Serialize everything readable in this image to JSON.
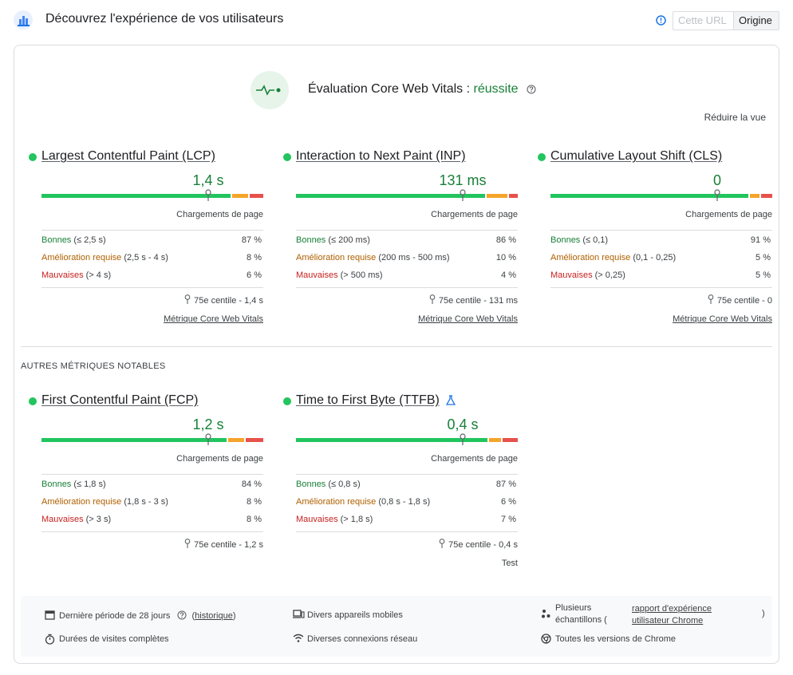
{
  "header": {
    "title": "Découvrez l'expérience de vos utilisateurs",
    "toggle": {
      "url_label": "Cette URL",
      "origin_label": "Origine",
      "selected": "Origine"
    }
  },
  "assessment": {
    "title_prefix": "Évaluation Core Web Vitals : ",
    "result": "réussite",
    "reduce_label": "Réduire la vue"
  },
  "colors": {
    "good": "#22c55e",
    "good_text": "#188038",
    "needs_improvement": "#f4a52a",
    "poor": "#e8514b"
  },
  "core_metrics": [
    {
      "name": "Largest Contentful Paint (LCP)",
      "value": "1,4 s",
      "distribution": {
        "good": 0.87,
        "needs_improvement": 0.08,
        "poor": 0.06
      },
      "marker_fraction": 0.75,
      "subtitle": "Chargements de page",
      "rows": [
        {
          "label": "Bonnes",
          "range": "(≤ 2,5 s)",
          "pct": "87 %"
        },
        {
          "label": "Amélioration requise",
          "range": "(2,5 s - 4 s)",
          "pct": "8 %"
        },
        {
          "label": "Mauvaises",
          "range": "(> 4 s)",
          "pct": "6 %"
        }
      ],
      "p75": "75e centile - 1,4 s",
      "link": "Métrique Core Web Vitals"
    },
    {
      "name": "Interaction to Next Paint (INP)",
      "value": "131 ms",
      "distribution": {
        "good": 0.86,
        "needs_improvement": 0.1,
        "poor": 0.04
      },
      "marker_fraction": 0.75,
      "subtitle": "Chargements de page",
      "rows": [
        {
          "label": "Bonnes",
          "range": "(≤ 200 ms)",
          "pct": "86 %"
        },
        {
          "label": "Amélioration requise",
          "range": "(200 ms - 500 ms)",
          "pct": "10 %"
        },
        {
          "label": "Mauvaises",
          "range": "(> 500 ms)",
          "pct": "4 %"
        }
      ],
      "p75": "75e centile - 131 ms",
      "link": "Métrique Core Web Vitals"
    },
    {
      "name": "Cumulative Layout Shift (CLS)",
      "value": "0",
      "distribution": {
        "good": 0.91,
        "needs_improvement": 0.05,
        "poor": 0.05
      },
      "marker_fraction": 0.75,
      "subtitle": "Chargements de page",
      "rows": [
        {
          "label": "Bonnes",
          "range": "(≤ 0,1)",
          "pct": "91 %"
        },
        {
          "label": "Amélioration requise",
          "range": "(0,1 - 0,25)",
          "pct": "5 %"
        },
        {
          "label": "Mauvaises",
          "range": "(> 0,25)",
          "pct": "5 %"
        }
      ],
      "p75": "75e centile - 0",
      "link": "Métrique Core Web Vitals"
    }
  ],
  "other_label": "AUTRES MÉTRIQUES NOTABLES",
  "other_metrics": [
    {
      "name": "First Contentful Paint (FCP)",
      "value": "1,2 s",
      "distribution": {
        "good": 0.84,
        "needs_improvement": 0.08,
        "poor": 0.08
      },
      "marker_fraction": 0.75,
      "subtitle": "Chargements de page",
      "rows": [
        {
          "label": "Bonnes",
          "range": "(≤ 1,8 s)",
          "pct": "84 %"
        },
        {
          "label": "Amélioration requise",
          "range": "(1,8 s - 3 s)",
          "pct": "8 %"
        },
        {
          "label": "Mauvaises",
          "range": "(> 3 s)",
          "pct": "8 %"
        }
      ],
      "p75": "75e centile - 1,2 s"
    },
    {
      "name": "Time to First Byte (TTFB)",
      "value": "0,4 s",
      "experimental_icon": "flask-icon",
      "distribution": {
        "good": 0.87,
        "needs_improvement": 0.06,
        "poor": 0.07
      },
      "marker_fraction": 0.75,
      "subtitle": "Chargements de page",
      "rows": [
        {
          "label": "Bonnes",
          "range": "(≤ 0,8 s)",
          "pct": "87 %"
        },
        {
          "label": "Amélioration requise",
          "range": "(0,8 s - 1,8 s)",
          "pct": "6 %"
        },
        {
          "label": "Mauvaises",
          "range": "(> 1,8 s)",
          "pct": "7 %"
        }
      ],
      "p75": "75e centile - 0,4 s",
      "badge": "Test"
    }
  ],
  "footer": {
    "period": "Dernière période de 28 jours",
    "history_link": "historique",
    "visits": "Durées de visites complètes",
    "devices": "Divers appareils mobiles",
    "connections": "Diverses connexions réseau",
    "samples_line1": "Plusieurs",
    "samples_line2": "échantillons (",
    "samples_link": "rapport d'expérience utilisateur Chrome",
    "samples_close": ")",
    "chrome_versions": "Toutes les versions de Chrome"
  }
}
